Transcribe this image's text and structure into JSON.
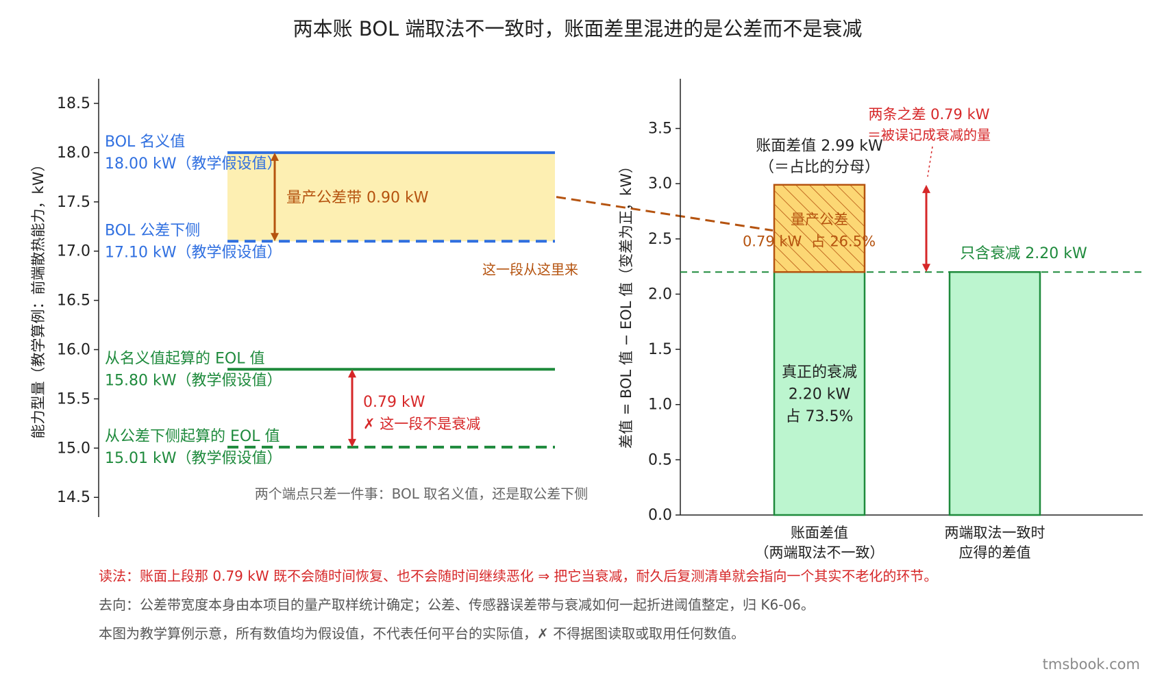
{
  "title": "两本账 BOL 端取法不一致时，账面差里混进的是公差而不是衰减",
  "colors": {
    "blue": "#2f6fe0",
    "band_fill": "#fdefb2",
    "brown": "#b5530f",
    "green": "#1e8a3c",
    "red": "#d62728",
    "bar_green_fill": "#bcf5cf",
    "bar_orange_fill": "#fcd774",
    "gray": "#555555"
  },
  "chart_data": [
    {
      "type": "line",
      "ylabel": "能力型量（教学算例：前端散热能力，kW）",
      "ylim": [
        14.3,
        18.75
      ],
      "yticks": [
        14.5,
        15.0,
        15.5,
        16.0,
        16.5,
        17.0,
        17.5,
        18.0,
        18.5
      ],
      "lines": [
        {
          "id": "bol-nominal",
          "y": 18.0,
          "style": "solid",
          "color": "blue",
          "label1": "BOL 名义值",
          "label2": "18.00 kW（教学假设值）"
        },
        {
          "id": "bol-lower",
          "y": 17.1,
          "style": "dashed",
          "color": "blue",
          "label1": "BOL 公差下侧",
          "label2": "17.10 kW（教学假设值）"
        },
        {
          "id": "eol-nominal",
          "y": 15.8,
          "style": "solid",
          "color": "green",
          "label1": "从名义值起算的 EOL 值",
          "label2": "15.80 kW（教学假设值）"
        },
        {
          "id": "eol-lower",
          "y": 15.01,
          "style": "dashed",
          "color": "green",
          "label1": "从公差下侧起算的 EOL 值",
          "label2": "15.01 kW（教学假设值）"
        }
      ],
      "band": {
        "from": 17.1,
        "to": 18.0,
        "label": "量产公差带 0.90 kW"
      },
      "gap": {
        "from": 15.01,
        "to": 15.8,
        "label1": "0.79 kW",
        "label2": "✗ 这一段不是衰减"
      },
      "annotations": {
        "source": "这一段从这里来",
        "bottom": "两个端点只差一件事：BOL 取名义值，还是取公差下侧"
      }
    },
    {
      "type": "bar",
      "ylabel": "差值 = BOL 值 − EOL 值（变差为正，kW）",
      "ylim": [
        0,
        3.95
      ],
      "yticks": [
        0.0,
        0.5,
        1.0,
        1.5,
        2.0,
        2.5,
        3.0,
        3.5
      ],
      "categories": [
        "账面差值\n（两端取法不一致）",
        "两端取法一致时\n应得的差值"
      ],
      "series": [
        {
          "name": "真正的衰减",
          "values": [
            2.2,
            2.2
          ]
        },
        {
          "name": "量产公差",
          "values": [
            0.79,
            0
          ]
        }
      ],
      "reference_line": 2.2,
      "labels": {
        "total": "账面差值 2.99 kW",
        "total_sub": "（＝占比的分母）",
        "tol_name": "量产公差",
        "tol_val": "0.79 kW  占 26.5%",
        "decay_1": "真正的衰减",
        "decay_2": "2.20 kW",
        "decay_3": "占 73.5%",
        "only": "只含衰减 2.20 kW",
        "diff_1": "两条之差 0.79 kW",
        "diff_2": "＝被误记成衰减的量"
      }
    }
  ],
  "notes": {
    "read": "读法：账面上段那 0.79 kW 既不会随时间恢复、也不会随时间继续恶化 ⇒ 把它当衰减，耐久后复测清单就会指向一个其实不老化的环节。",
    "go": "去向：公差带宽度本身由本项目的量产取样统计确定；公差、传感器误差带与衰减如何一起折进阈值整定，归 K6-06。",
    "disc": "本图为教学算例示意，所有数值均为假设值，不代表任何平台的实际值，✗ 不得据图读取或取用任何数值。"
  },
  "credit": "tmsbook.com"
}
